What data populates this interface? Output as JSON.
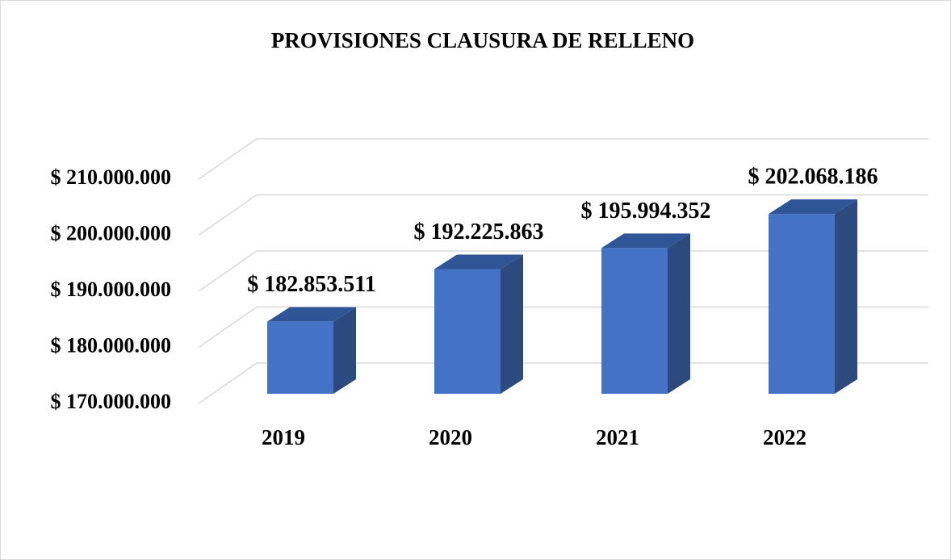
{
  "chart_data": {
    "type": "bar3d",
    "title": "PROVISIONES CLAUSURA DE RELLENO",
    "categories": [
      "2019",
      "2020",
      "2021",
      "2022"
    ],
    "values": [
      182853511,
      192225863,
      195994352,
      202068186
    ],
    "value_labels": [
      "$ 182.853.511",
      "$ 192.225.863",
      "$ 195.994.352",
      "$ 202.068.186"
    ],
    "color": "#4472c4",
    "ylim": [
      170000000,
      210000000
    ],
    "yticks": [
      {
        "value": 170000000,
        "label": "$ 170.000.000"
      },
      {
        "value": 180000000,
        "label": "$ 180.000.000"
      },
      {
        "value": 190000000,
        "label": "$ 190.000.000"
      },
      {
        "value": 200000000,
        "label": "$ 200.000.000"
      },
      {
        "value": 210000000,
        "label": "$ 210.000.000"
      }
    ],
    "grid": true
  }
}
